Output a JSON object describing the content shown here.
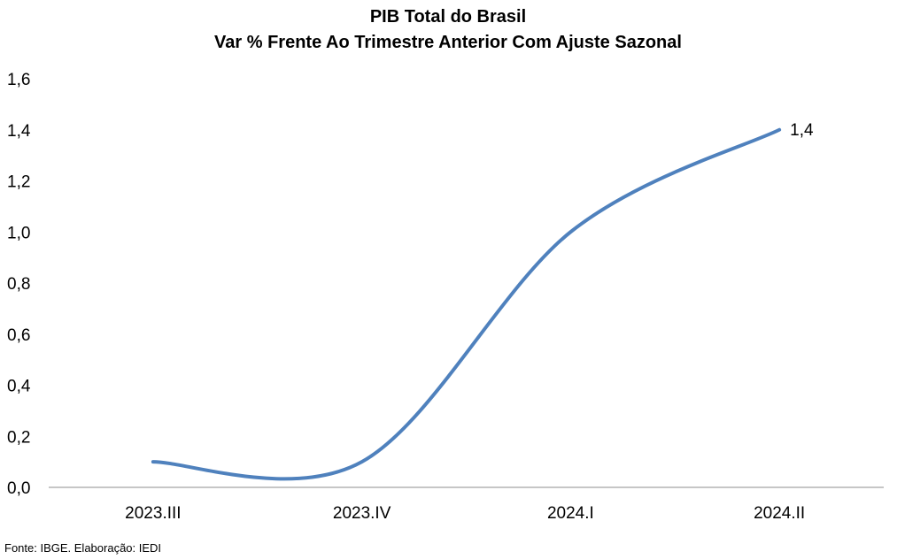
{
  "chart_data": {
    "type": "line",
    "title": "PIB Total do Brasil",
    "subtitle": "Var % Frente Ao Trimestre Anterior Com Ajuste Sazonal",
    "categories": [
      "2023.III",
      "2023.IV",
      "2024.I",
      "2024.II"
    ],
    "series": [
      {
        "values": [
          0.1,
          0.1,
          1.0,
          1.4
        ],
        "color": "#4F81BD"
      }
    ],
    "data_labels": [
      {
        "index": 3,
        "text": "1,4"
      }
    ],
    "ylim": [
      0,
      1.6
    ],
    "y_ticks": [
      "0,0",
      "0,2",
      "0,4",
      "0,6",
      "0,8",
      "1,0",
      "1,2",
      "1,4",
      "1,6"
    ],
    "xlabel": "",
    "ylabel": "",
    "grid": false,
    "legend": "none",
    "smooth": true
  },
  "source": "Fonte: IBGE. Elaboração: IEDI"
}
